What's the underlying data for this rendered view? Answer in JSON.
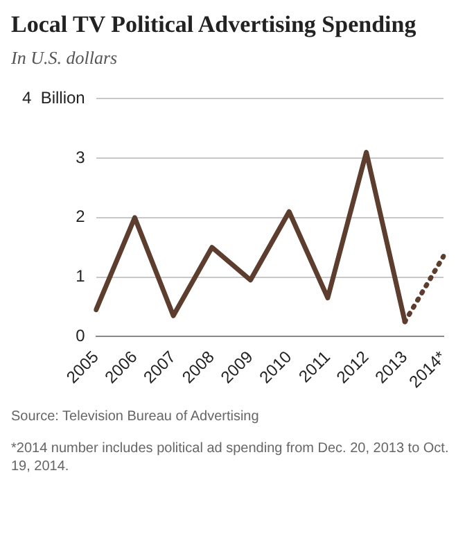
{
  "chart_data": {
    "type": "line",
    "title": "Local TV Political Advertising Spending",
    "subtitle": "In U.S. dollars",
    "categories": [
      "2005",
      "2006",
      "2007",
      "2008",
      "2009",
      "2010",
      "2011",
      "2012",
      "2013",
      "2014*"
    ],
    "series": [
      {
        "color": "#5c3d2e",
        "line_style": "solid",
        "values": [
          0.45,
          2.0,
          0.35,
          1.5,
          0.95,
          2.1,
          0.65,
          3.1,
          0.25,
          null
        ]
      },
      {
        "color": "#5c3d2e",
        "line_style": "dotted",
        "values": [
          null,
          null,
          null,
          null,
          null,
          null,
          null,
          null,
          0.25,
          1.35
        ]
      }
    ],
    "ylim": [
      0,
      4
    ],
    "yticks": [
      0,
      1,
      2,
      3,
      {
        "value": 4,
        "label": "4  Billion"
      }
    ],
    "grid": "y",
    "legend": false,
    "marker": "none",
    "annotations": [
      "Source: Television Bureau of Advertising",
      "*2014 number includes political ad spending from Dec. 20, 2013 to Oct. 19, 2014."
    ]
  }
}
